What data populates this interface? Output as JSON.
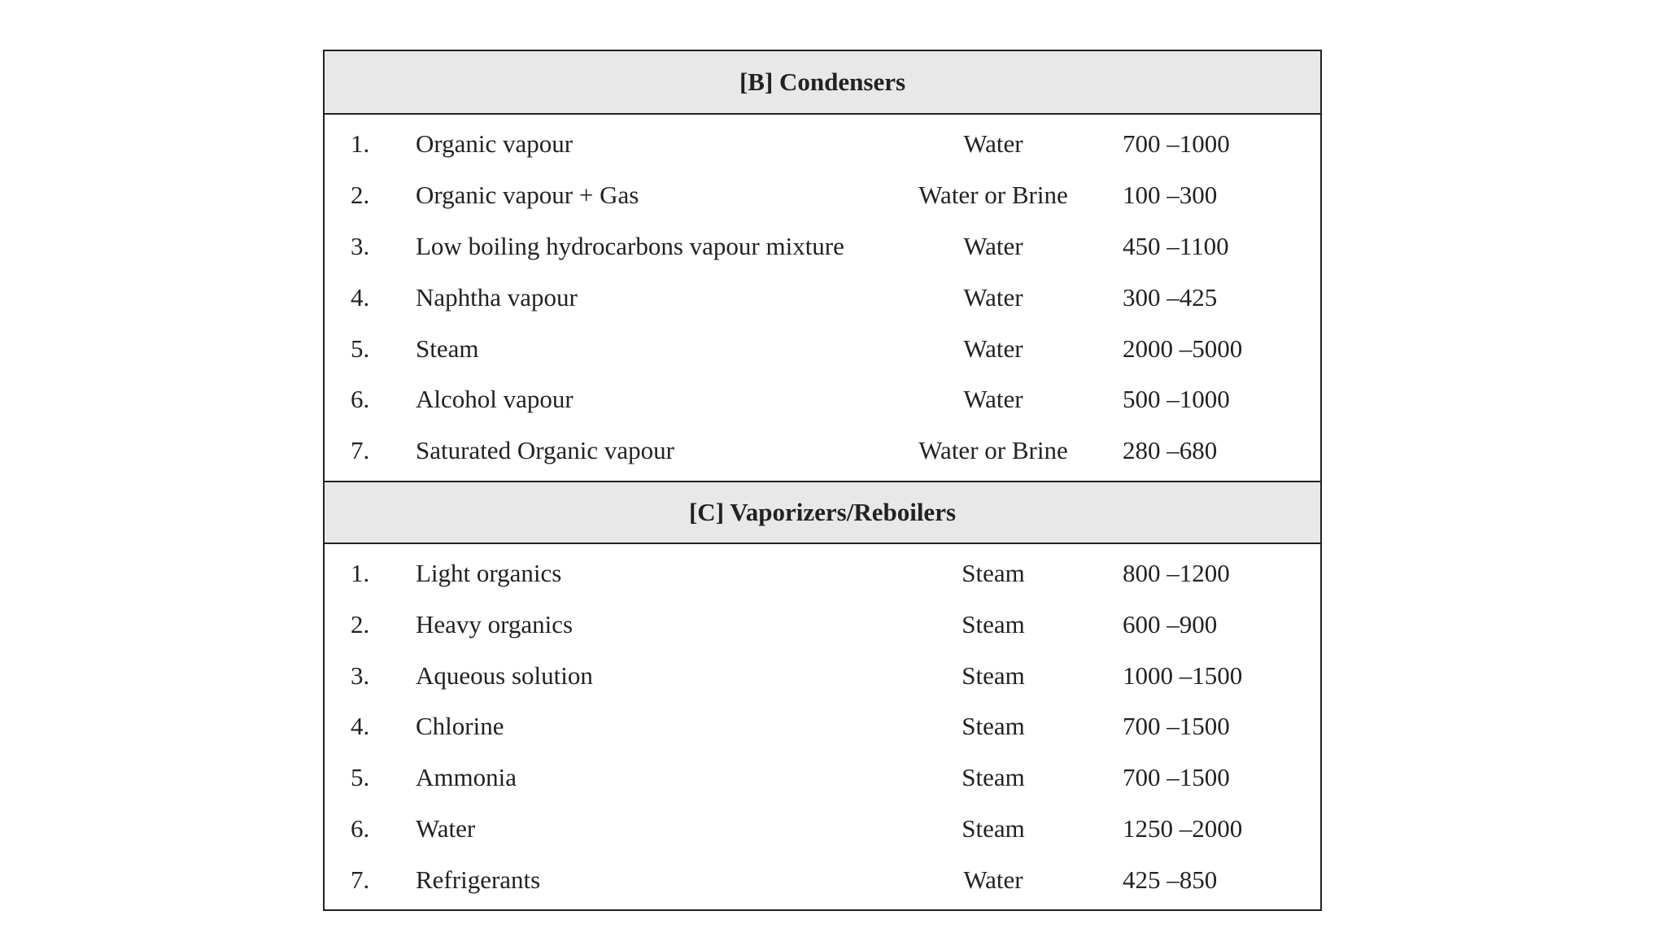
{
  "sections": [
    {
      "title": "[B] Condensers",
      "rows": [
        {
          "num": "1.",
          "desc": "Organic vapour",
          "medium": "Water",
          "range": "700 –1000"
        },
        {
          "num": "2.",
          "desc": "Organic vapour + Gas",
          "medium": "Water or Brine",
          "range": "100 –300"
        },
        {
          "num": "3.",
          "desc": "Low boiling hydrocarbons vapour mixture",
          "medium": "Water",
          "range": "450 –1100"
        },
        {
          "num": "4.",
          "desc": "Naphtha vapour",
          "medium": "Water",
          "range": "300 –425"
        },
        {
          "num": "5.",
          "desc": "Steam",
          "medium": "Water",
          "range": "2000 –5000"
        },
        {
          "num": "6.",
          "desc": "Alcohol vapour",
          "medium": "Water",
          "range": "500 –1000"
        },
        {
          "num": "7.",
          "desc": "Saturated Organic vapour",
          "medium": "Water or Brine",
          "range": "280 –680"
        }
      ]
    },
    {
      "title": "[C] Vaporizers/Reboilers",
      "rows": [
        {
          "num": "1.",
          "desc": "Light organics",
          "medium": "Steam",
          "range": "800 –1200"
        },
        {
          "num": "2.",
          "desc": "Heavy organics",
          "medium": "Steam",
          "range": "600 –900"
        },
        {
          "num": "3.",
          "desc": "Aqueous solution",
          "medium": "Steam",
          "range": "1000 –1500"
        },
        {
          "num": "4.",
          "desc": "Chlorine",
          "medium": "Steam",
          "range": "700 –1500"
        },
        {
          "num": "5.",
          "desc": "Ammonia",
          "medium": "Steam",
          "range": "700 –1500"
        },
        {
          "num": "6.",
          "desc": "Water",
          "medium": "Steam",
          "range": "1250 –2000"
        },
        {
          "num": "7.",
          "desc": "Refrigerants",
          "medium": "Water",
          "range": "425 –850"
        }
      ]
    }
  ]
}
